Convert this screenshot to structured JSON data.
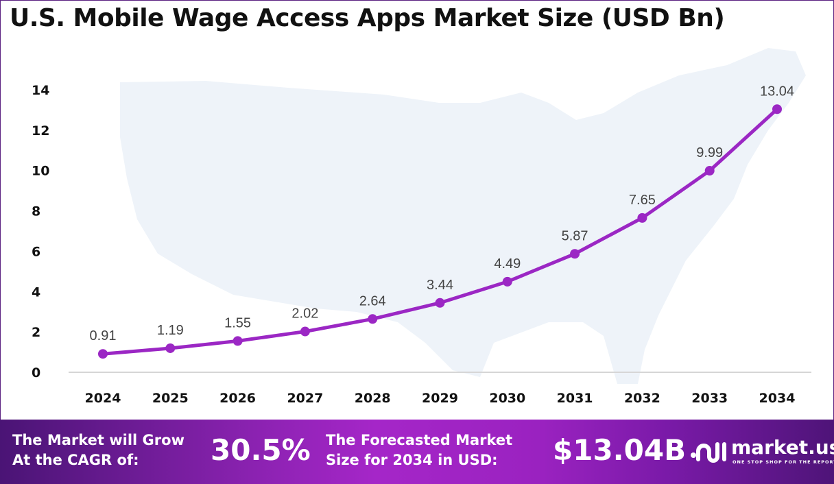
{
  "chart_data": {
    "type": "line",
    "title": "U.S. Mobile Wage Access Apps Market Size (USD Bn)",
    "categories": [
      "2024",
      "2025",
      "2026",
      "2027",
      "2028",
      "2029",
      "2030",
      "2031",
      "2032",
      "2033",
      "2034"
    ],
    "values": [
      0.91,
      1.19,
      1.55,
      2.02,
      2.64,
      3.44,
      4.49,
      5.87,
      7.65,
      9.99,
      13.04
    ],
    "data_labels": [
      "0.91",
      "1.19",
      "1.55",
      "2.02",
      "2.64",
      "3.44",
      "4.49",
      "5.87",
      "7.65",
      "9.99",
      "13.04"
    ],
    "ylim": [
      0,
      14
    ],
    "yticks": [
      "0",
      "2",
      "4",
      "6",
      "8",
      "10",
      "12",
      "14"
    ],
    "grid": false,
    "line_color": "#9b27c4",
    "background": "faint U.S. map silhouette"
  },
  "footer": {
    "cagr_label_1": "The Market will Grow",
    "cagr_label_2": "At the CAGR of:",
    "cagr_value": "30.5%",
    "forecast_label_1": "The Forecasted Market",
    "forecast_label_2": "Size for 2034 in USD:",
    "forecast_value": "$13.04B",
    "brand": "market.us",
    "tagline": "ONE STOP SHOP FOR THE REPORTS"
  }
}
